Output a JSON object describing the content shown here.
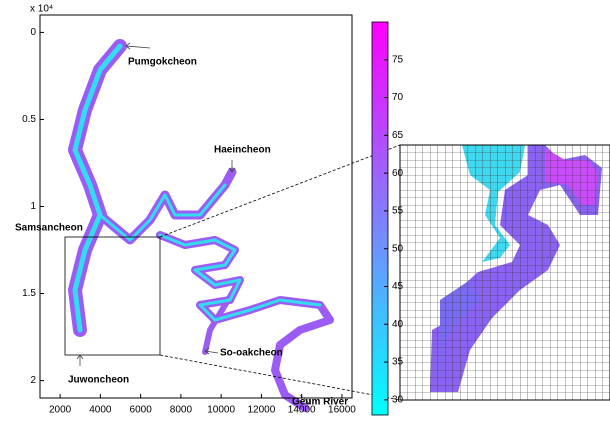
{
  "chart_data": {
    "type": "map",
    "y_exponent_label": "x 10⁴",
    "xlim": [
      1000,
      16500
    ],
    "xticks": [
      2000,
      4000,
      6000,
      8000,
      10000,
      12000,
      14000,
      16000
    ],
    "ylim": [
      -0.1,
      2.1
    ],
    "yticks": [
      0,
      0.5,
      1,
      1.5,
      2
    ],
    "colorbar": {
      "lim": [
        28,
        80
      ],
      "ticks": [
        30,
        35,
        40,
        45,
        50,
        55,
        60,
        65,
        70,
        75
      ],
      "colors": [
        "#00ffff",
        "#ff00ff"
      ]
    },
    "annotations": [
      "Pumgokcheon",
      "Haeincheon",
      "Samsancheon",
      "Juwoncheon",
      "So-oakcheon",
      "Geum River"
    ]
  }
}
